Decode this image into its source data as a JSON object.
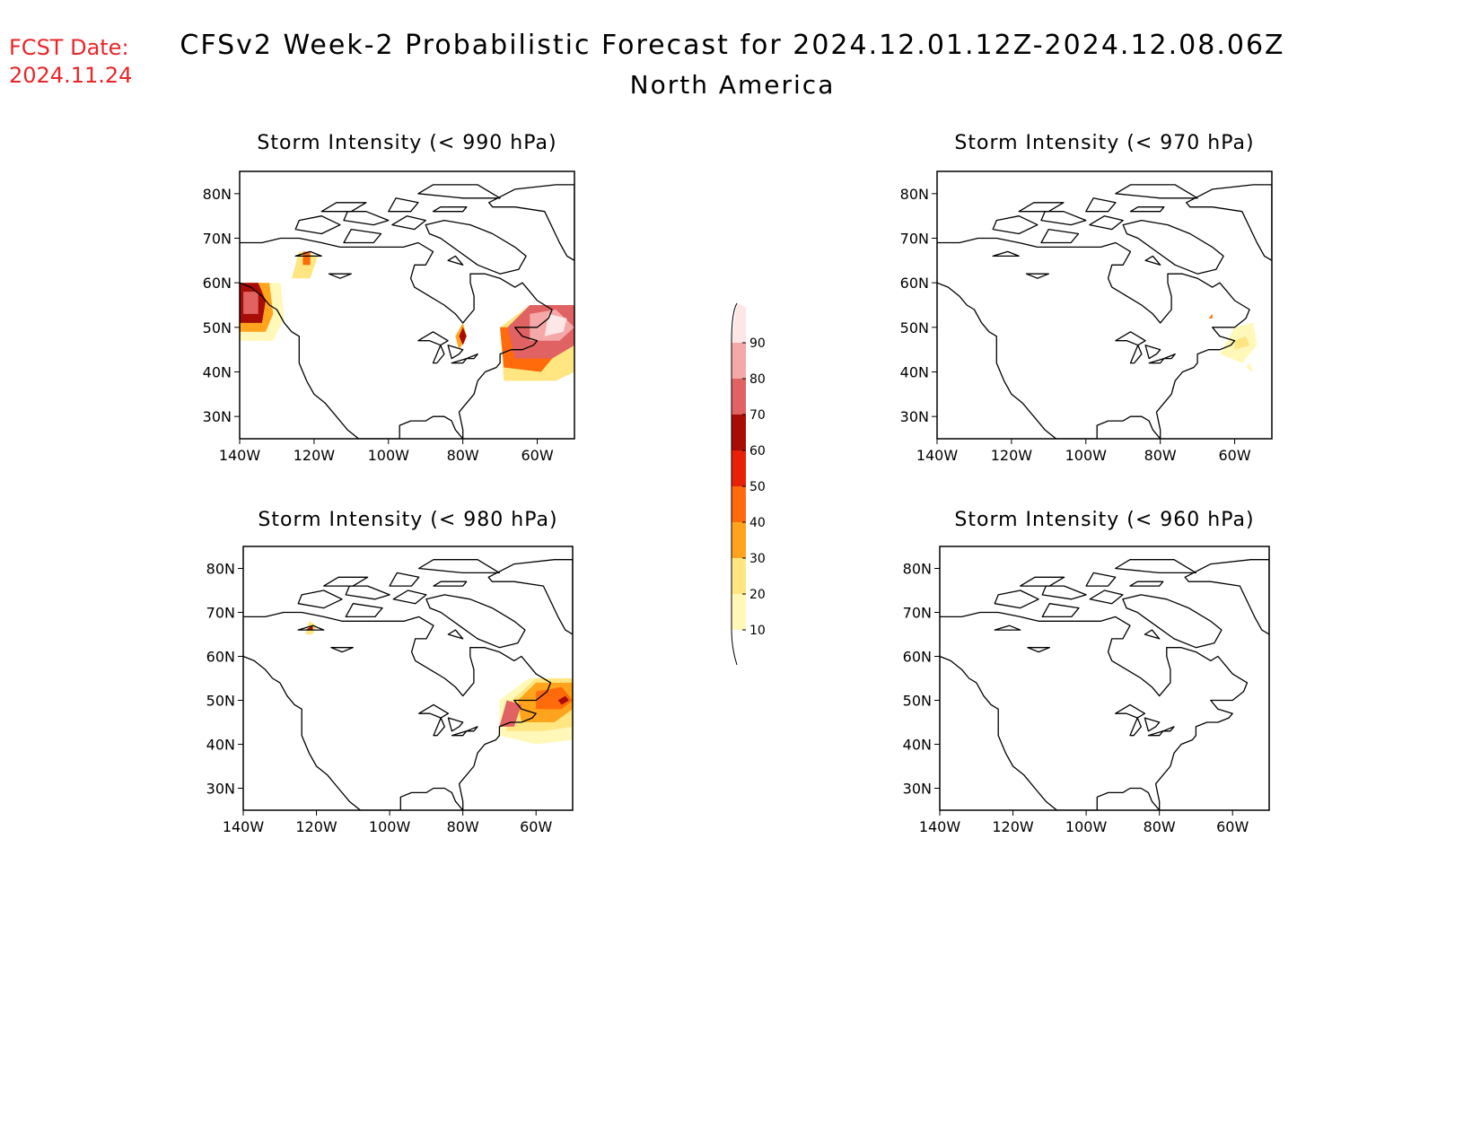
{
  "header": {
    "fcst_label": "FCST Date:",
    "fcst_date": "2024.11.24",
    "title": "CFSv2 Week-2 Probabilistic Forecast for 2024.12.01.12Z-2024.12.08.06Z",
    "subtitle": "North America"
  },
  "colors": {
    "fcst_text": "#e8262a",
    "text": "#000000",
    "coast": "#000000",
    "levels": [
      "#fff8b8",
      "#ffe680",
      "#ffa41c",
      "#ff6a0a",
      "#e82008",
      "#a80c06",
      "#e06262",
      "#f4a8a8",
      "#fde6e6"
    ]
  },
  "legend": {
    "labels": [
      "10",
      "20",
      "30",
      "40",
      "50",
      "60",
      "70",
      "80",
      "90"
    ]
  },
  "map_axes": {
    "lat_labels": [
      "80N",
      "70N",
      "60N",
      "50N",
      "40N",
      "30N"
    ],
    "lon_labels": [
      "140W",
      "120W",
      "100W",
      "80W",
      "60W"
    ],
    "lat_values": [
      80,
      70,
      60,
      50,
      40,
      30
    ],
    "lon_values": [
      -140,
      -120,
      -100,
      -80,
      -60
    ],
    "lon_range": [
      -140,
      -50
    ],
    "lat_range": [
      25,
      85
    ]
  },
  "panels": [
    {
      "title": "Storm Intensity (< 990 hPa)",
      "regions": [
        {
          "level": 0,
          "points": [
            [
              -140,
              47
            ],
            [
              -131,
              47
            ],
            [
              -128,
              52
            ],
            [
              -129,
              60
            ],
            [
              -140,
              60
            ]
          ]
        },
        {
          "level": 2,
          "points": [
            [
              -140,
              49
            ],
            [
              -133,
              49
            ],
            [
              -131,
              53
            ],
            [
              -132,
              60
            ],
            [
              -140,
              60
            ]
          ]
        },
        {
          "level": 5,
          "points": [
            [
              -140,
              51
            ],
            [
              -134,
              51
            ],
            [
              -133,
              56
            ],
            [
              -135,
              60
            ],
            [
              -140,
              60
            ]
          ]
        },
        {
          "level": 6,
          "points": [
            [
              -139,
              53
            ],
            [
              -135,
              53
            ],
            [
              -135,
              58
            ],
            [
              -139,
              58
            ]
          ]
        },
        {
          "level": 1,
          "points": [
            [
              -126,
              61
            ],
            [
              -121,
              61
            ],
            [
              -119,
              66
            ],
            [
              -124,
              67
            ]
          ]
        },
        {
          "level": 3,
          "points": [
            [
              -123,
              64
            ],
            [
              -121,
              64
            ],
            [
              -121,
              67
            ],
            [
              -123,
              67
            ]
          ]
        },
        {
          "level": 1,
          "points": [
            [
              -69,
              38
            ],
            [
              -55,
              38
            ],
            [
              -50,
              40
            ],
            [
              -50,
              55
            ],
            [
              -62,
              55
            ],
            [
              -70,
              50
            ]
          ]
        },
        {
          "level": 3,
          "points": [
            [
              -69,
              41
            ],
            [
              -59,
              40
            ],
            [
              -55,
              44
            ],
            [
              -60,
              50
            ],
            [
              -70,
              50
            ]
          ]
        },
        {
          "level": 6,
          "points": [
            [
              -66,
              43
            ],
            [
              -56,
              43
            ],
            [
              -50,
              46
            ],
            [
              -50,
              55
            ],
            [
              -62,
              55
            ],
            [
              -68,
              50
            ]
          ]
        },
        {
          "level": 7,
          "points": [
            [
              -62,
              47
            ],
            [
              -54,
              47
            ],
            [
              -50,
              50
            ],
            [
              -55,
              54
            ],
            [
              -62,
              53
            ]
          ]
        },
        {
          "level": 8,
          "points": [
            [
              -58,
              48
            ],
            [
              -53,
              49
            ],
            [
              -52,
              52
            ],
            [
              -57,
              53
            ]
          ]
        },
        {
          "level": 2,
          "points": [
            [
              -81,
              45
            ],
            [
              -79,
              48
            ],
            [
              -80,
              51
            ],
            [
              -82,
              48
            ]
          ]
        },
        {
          "level": 5,
          "points": [
            [
              -80,
              46
            ],
            [
              -79,
              48
            ],
            [
              -80,
              50
            ],
            [
              -81,
              48
            ]
          ]
        }
      ]
    },
    {
      "title": "Storm Intensity (< 970 hPa)",
      "regions": [
        {
          "level": 0,
          "points": [
            [
              -64,
              44
            ],
            [
              -58,
              42
            ],
            [
              -54,
              46
            ],
            [
              -55,
              51
            ],
            [
              -60,
              50
            ]
          ]
        },
        {
          "level": 1,
          "points": [
            [
              -60,
              45
            ],
            [
              -56,
              46
            ],
            [
              -57,
              48
            ],
            [
              -60,
              47
            ]
          ]
        },
        {
          "level": 3,
          "points": [
            [
              -67,
              52
            ],
            [
              -66,
              53
            ],
            [
              -66,
              52
            ]
          ]
        },
        {
          "level": 0,
          "points": [
            [
              -57,
              41
            ],
            [
              -55,
              40
            ],
            [
              -56,
              42
            ]
          ]
        }
      ]
    },
    {
      "title": "Storm Intensity (< 980 hPa)",
      "regions": [
        {
          "level": 0,
          "points": [
            [
              -70,
              42
            ],
            [
              -60,
              40
            ],
            [
              -50,
              41
            ],
            [
              -50,
              55
            ],
            [
              -62,
              55
            ],
            [
              -70,
              50
            ]
          ]
        },
        {
          "level": 1,
          "points": [
            [
              -68,
              43
            ],
            [
              -58,
              43
            ],
            [
              -50,
              44
            ],
            [
              -50,
              55
            ],
            [
              -60,
              55
            ],
            [
              -68,
              49
            ]
          ]
        },
        {
          "level": 2,
          "points": [
            [
              -64,
              45
            ],
            [
              -55,
              45
            ],
            [
              -50,
              48
            ],
            [
              -50,
              54
            ],
            [
              -60,
              54
            ],
            [
              -65,
              50
            ]
          ]
        },
        {
          "level": 3,
          "points": [
            [
              -60,
              48
            ],
            [
              -53,
              48
            ],
            [
              -50,
              50
            ],
            [
              -53,
              53
            ],
            [
              -60,
              52
            ]
          ]
        },
        {
          "level": 6,
          "points": [
            [
              -70,
              44
            ],
            [
              -66,
              44
            ],
            [
              -64,
              49
            ],
            [
              -68,
              50
            ]
          ]
        },
        {
          "level": 5,
          "points": [
            [
              -53,
              49
            ],
            [
              -51,
              50
            ],
            [
              -52,
              51
            ],
            [
              -54,
              50
            ]
          ]
        },
        {
          "level": 1,
          "points": [
            [
              -123,
              65
            ],
            [
              -121,
              65
            ],
            [
              -120,
              67
            ],
            [
              -122,
              68
            ]
          ]
        },
        {
          "level": 5,
          "points": [
            [
              -123,
              66
            ],
            [
              -121,
              66
            ],
            [
              -121,
              67
            ]
          ]
        }
      ]
    },
    {
      "title": "Storm Intensity (< 960 hPa)",
      "regions": []
    }
  ]
}
